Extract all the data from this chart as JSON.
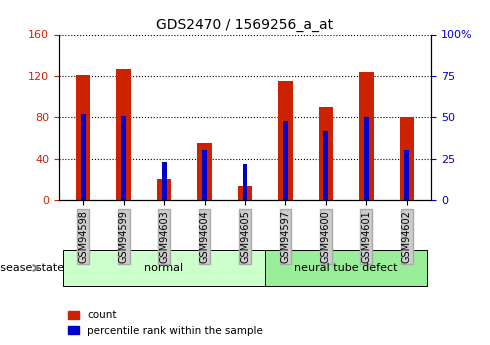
{
  "title": "GDS2470 / 1569256_a_at",
  "samples": [
    "GSM94598",
    "GSM94599",
    "GSM94603",
    "GSM94604",
    "GSM94605",
    "GSM94597",
    "GSM94600",
    "GSM94601",
    "GSM94602"
  ],
  "count_values": [
    121,
    127,
    20,
    55,
    14,
    115,
    90,
    124,
    80
  ],
  "percentile_values": [
    52,
    51,
    23,
    30,
    22,
    48,
    42,
    50,
    30
  ],
  "count_color": "#cc2200",
  "percentile_color": "#0000cc",
  "groups": [
    {
      "label": "normal",
      "start": 0,
      "end": 5,
      "color": "#ccffcc"
    },
    {
      "label": "neural tube defect",
      "start": 5,
      "end": 9,
      "color": "#99ee99"
    }
  ],
  "disease_state_label": "disease state",
  "legend_count": "count",
  "legend_percentile": "percentile rank within the sample",
  "ylim_left": [
    0,
    160
  ],
  "ylim_right": [
    0,
    100
  ],
  "yticks_left": [
    0,
    40,
    80,
    120,
    160
  ],
  "ytick_labels_left": [
    "0",
    "40",
    "80",
    "120",
    "160"
  ],
  "yticks_right": [
    0,
    25,
    50,
    75,
    100
  ],
  "ytick_labels_right": [
    "0",
    "25",
    "50",
    "75",
    "100%"
  ],
  "bar_width": 0.35,
  "bg_color": "#ffffff",
  "grid_color": "#000000"
}
